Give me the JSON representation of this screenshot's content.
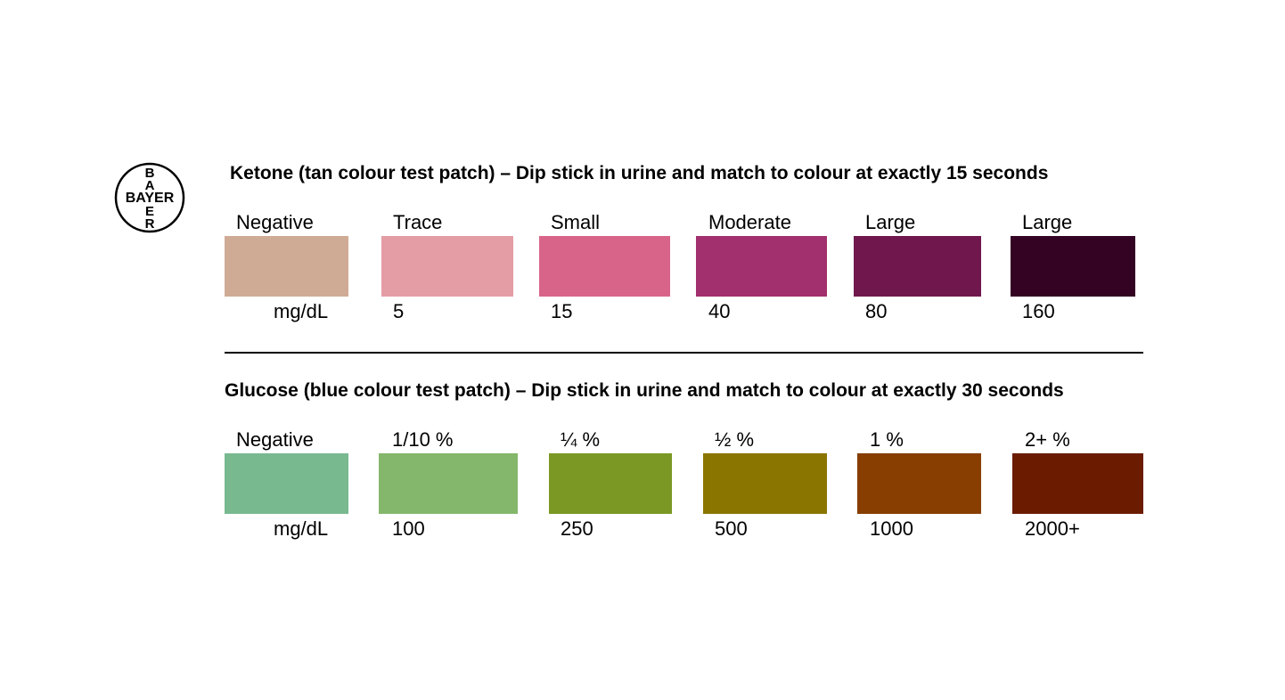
{
  "logo": {
    "text": "BAYER",
    "icon": "bayer-cross-logo"
  },
  "ketone": {
    "title": "Ketone (tan colour test patch) – Dip stick in urine and match to colour at exactly 15 seconds",
    "unit": "mg/dL",
    "swatches": [
      {
        "label": "Negative",
        "value": "",
        "color": "#CFAB95"
      },
      {
        "label": "Trace",
        "value": "5",
        "color": "#E49DA5"
      },
      {
        "label": "Small",
        "value": "15",
        "color": "#D86589"
      },
      {
        "label": "Moderate",
        "value": "40",
        "color": "#A22F6E"
      },
      {
        "label": "Large",
        "value": "80",
        "color": "#70174E"
      },
      {
        "label": "Large",
        "value": "160",
        "color": "#340324"
      }
    ]
  },
  "glucose": {
    "title": "Glucose (blue colour test patch) – Dip stick in urine and match to colour at exactly 30 seconds",
    "unit": "mg/dL",
    "swatches": [
      {
        "label": "Negative",
        "value": "",
        "color": "#78B990"
      },
      {
        "label": "1/10 %",
        "value": "100",
        "color": "#84B76B"
      },
      {
        "label": "¼ %",
        "value": "250",
        "color": "#7A9823"
      },
      {
        "label": "½ %",
        "value": "500",
        "color": "#8A7500"
      },
      {
        "label": "1 %",
        "value": "1000",
        "color": "#873E00"
      },
      {
        "label": "2+ %",
        "value": "2000+",
        "color": "#6B1C00"
      }
    ]
  }
}
